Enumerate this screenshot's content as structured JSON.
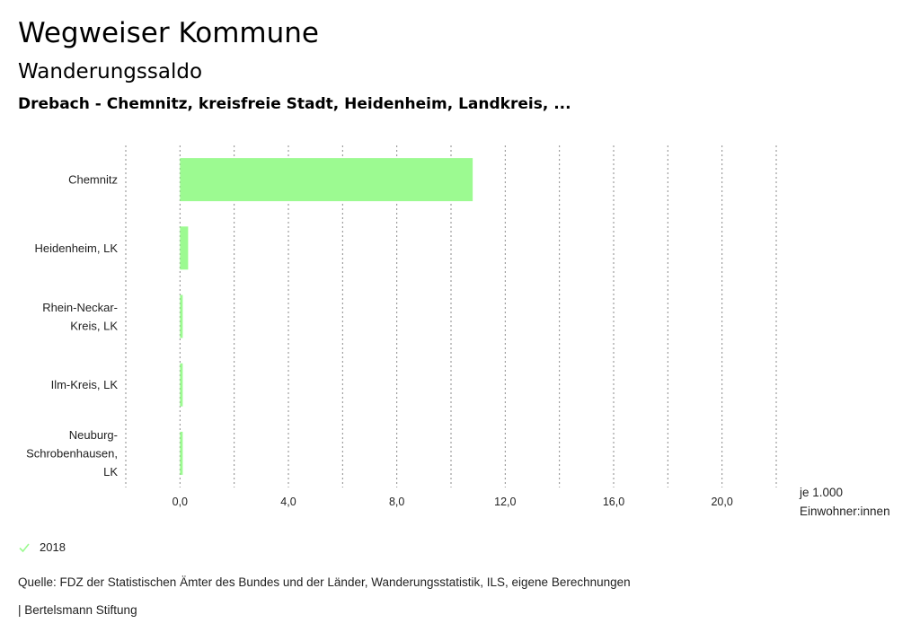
{
  "header": {
    "title": "Wegweiser Kommune",
    "subtitle": "Wanderungssaldo",
    "comparison": "Drebach - Chemnitz, kreisfreie Stadt, Heidenheim, Landkreis, ..."
  },
  "chart_data": {
    "type": "bar",
    "orientation": "horizontal",
    "categories": [
      "Chemnitz",
      "Heidenheim, LK",
      "Rhein-Neckar-Kreis, LK",
      "Ilm-Kreis, LK",
      "Neuburg-Schrobenhausen, LK"
    ],
    "category_lines": [
      [
        "Chemnitz"
      ],
      [
        "Heidenheim, LK"
      ],
      [
        "Rhein-Neckar-",
        "Kreis, LK"
      ],
      [
        "Ilm-Kreis, LK"
      ],
      [
        "Neuburg-",
        "Schrobenhausen,",
        "LK"
      ]
    ],
    "series": [
      {
        "name": "2018",
        "color": "#9cfa91",
        "values": [
          10.8,
          0.3,
          0.1,
          0.1,
          0.1
        ]
      }
    ],
    "xlim": [
      -2.0,
      22.0
    ],
    "xticks": [
      0,
      4,
      8,
      12,
      16,
      20
    ],
    "xtick_labels": [
      "0,0",
      "4,0",
      "8,0",
      "12,0",
      "16,0",
      "20,0"
    ],
    "grid": true,
    "unit_label": "je 1.000 Einwohner:innen",
    "unit_lines": [
      "je 1.000",
      "Einwohner:innen"
    ],
    "legend_position": "bottom-left"
  },
  "legend": {
    "label": "2018",
    "icon": "check-icon",
    "color": "#9cfa91"
  },
  "footer": {
    "source": "Quelle: FDZ der Statistischen Ämter des Bundes und der Länder, Wanderungsstatistik, ILS, eigene Berechnungen",
    "credit": "| Bertelsmann Stiftung"
  }
}
